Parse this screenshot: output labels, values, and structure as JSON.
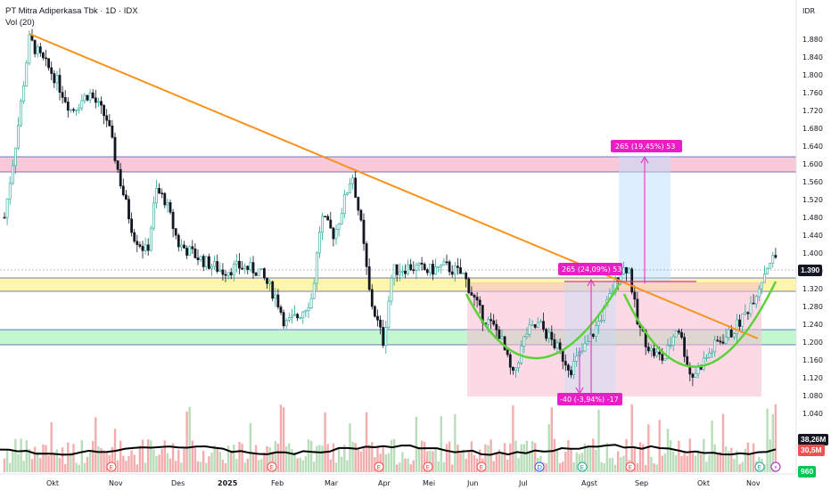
{
  "header": {
    "title": "PT Mitra Adiperkasa Tbk · 1D · IDX",
    "volume_label": "Vol (20)"
  },
  "currency": "IDR",
  "price_axis": [
    "1.880",
    "1.840",
    "1.800",
    "1.760",
    "1.720",
    "1.680",
    "1.640",
    "1.600",
    "1.560",
    "1.520",
    "1.480",
    "1.440",
    "1.400",
    "1.360",
    "1.320",
    "1.280",
    "1.240",
    "1.200",
    "1.160",
    "1.120",
    "1.080",
    "1.040"
  ],
  "time_axis": [
    "Okt",
    "Nov",
    "Des",
    "2025",
    "Feb",
    "Mar",
    "Apr",
    "Mei",
    "Jun",
    "Jul",
    "Agst",
    "Sep",
    "Okt",
    "Nov"
  ],
  "tags": {
    "price": "1.390",
    "vol_ma": "38,26M",
    "vol": "30,5M",
    "green": "960"
  },
  "annotations": {
    "target": "265 (19,45%) 53",
    "range": "265 (24,09%) 53",
    "drop": "-40 (-3,94%) -17"
  },
  "event_icons": [
    "E",
    "E",
    "E",
    "E",
    "E",
    "D",
    "E",
    "E",
    "E",
    "⚡"
  ],
  "colors": {
    "up": "#26a69a",
    "down": "#131722",
    "trendline": "#f7931a",
    "pink_zone": "#f8bbd0",
    "yellow_zone": "#fff59d",
    "green_zone": "#b9f6ca",
    "cup": "#4caf50",
    "annot": "#e91ec6"
  }
}
